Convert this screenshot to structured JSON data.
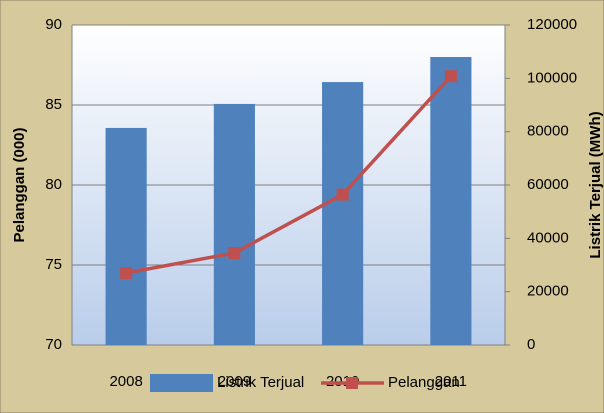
{
  "chart_data": {
    "type": "bar_line",
    "categories": [
      "2008",
      "2009",
      "2010",
      "2011"
    ],
    "y_label": "Pelanggan (000)",
    "y2_label": "Listrik Terjual (MWh)",
    "ylim": [
      70,
      90
    ],
    "yticks": [
      70,
      75,
      80,
      85,
      90
    ],
    "y2lim": [
      0,
      120000
    ],
    "y2ticks": [
      0,
      20000,
      40000,
      60000,
      80000,
      100000,
      120000
    ],
    "grid": true,
    "series": [
      {
        "name": "Listrik Terjual",
        "type": "bar",
        "axis": "y2",
        "color": "#4f81bd",
        "values": [
          81400,
          90400,
          98600,
          108000
        ]
      },
      {
        "name": "Pelanggan",
        "type": "line",
        "axis": "y",
        "color": "#c0504d",
        "values": [
          74.5,
          75.75,
          79.4,
          86.8
        ]
      }
    ]
  }
}
